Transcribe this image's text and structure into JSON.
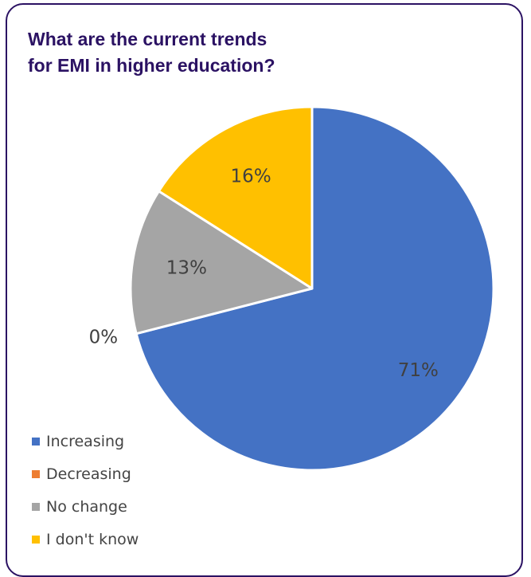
{
  "chart_data": {
    "type": "pie",
    "title": "What are the current trends for EMI in higher education?",
    "title_lines": [
      "What are the current trends",
      "for EMI in higher education?"
    ],
    "categories": [
      "Increasing",
      "Decreasing",
      "No change",
      "I don't know"
    ],
    "values": [
      71,
      0,
      13,
      16
    ],
    "data_labels": [
      "71%",
      "0%",
      "13%",
      "16%"
    ],
    "colors": [
      "#4472c4",
      "#ed7d31",
      "#a5a5a5",
      "#ffc000"
    ],
    "start_angle_deg": 0,
    "direction": "clockwise",
    "legend_position": "bottom-left",
    "label_color": "#404040"
  },
  "theme": {
    "title_color": "#2b1263",
    "border_color": "#2b1263"
  }
}
